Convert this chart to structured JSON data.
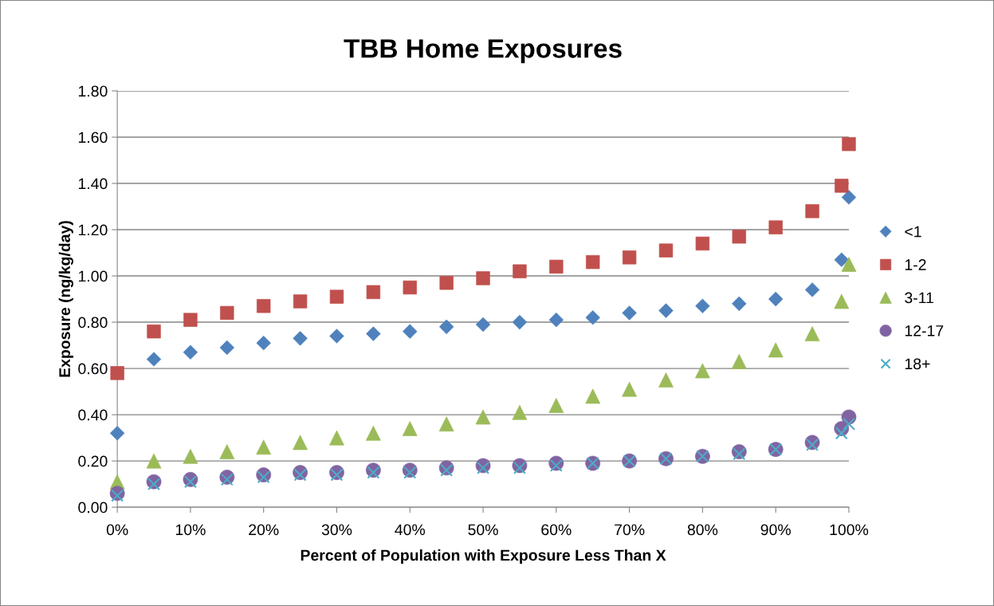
{
  "chart_data": {
    "type": "scatter",
    "title": "TBB Home Exposures",
    "xlabel": "Percent of Population with Exposure Less Than X",
    "ylabel": "Exposure (ng/kg/day)",
    "x": [
      0,
      5,
      10,
      15,
      20,
      25,
      30,
      35,
      40,
      45,
      50,
      55,
      60,
      65,
      70,
      75,
      80,
      85,
      90,
      95,
      99,
      100
    ],
    "series": [
      {
        "name": "<1",
        "color": "#4f81bd",
        "marker": "diamond",
        "values": [
          0.32,
          0.64,
          0.67,
          0.69,
          0.71,
          0.73,
          0.74,
          0.75,
          0.76,
          0.78,
          0.79,
          0.8,
          0.81,
          0.82,
          0.84,
          0.85,
          0.87,
          0.88,
          0.9,
          0.94,
          1.07,
          1.34
        ]
      },
      {
        "name": "1-2",
        "color": "#c0504d",
        "marker": "square",
        "values": [
          0.58,
          0.76,
          0.81,
          0.84,
          0.87,
          0.89,
          0.91,
          0.93,
          0.95,
          0.97,
          0.99,
          1.02,
          1.04,
          1.06,
          1.08,
          1.11,
          1.14,
          1.17,
          1.21,
          1.28,
          1.39,
          1.57
        ]
      },
      {
        "name": "3-11",
        "color": "#9bbb59",
        "marker": "triangle",
        "values": [
          0.11,
          0.2,
          0.22,
          0.24,
          0.26,
          0.28,
          0.3,
          0.32,
          0.34,
          0.36,
          0.39,
          0.41,
          0.44,
          0.48,
          0.51,
          0.55,
          0.59,
          0.63,
          0.68,
          0.75,
          0.89,
          1.05
        ]
      },
      {
        "name": "12-17",
        "color": "#8064a2",
        "marker": "circle",
        "values": [
          0.06,
          0.11,
          0.12,
          0.13,
          0.14,
          0.15,
          0.15,
          0.16,
          0.16,
          0.17,
          0.18,
          0.18,
          0.19,
          0.19,
          0.2,
          0.21,
          0.22,
          0.24,
          0.25,
          0.28,
          0.34,
          0.39
        ]
      },
      {
        "name": "18+",
        "color": "#4bacc6",
        "marker": "cross",
        "values": [
          0.05,
          0.1,
          0.11,
          0.12,
          0.13,
          0.14,
          0.14,
          0.15,
          0.15,
          0.16,
          0.17,
          0.17,
          0.18,
          0.19,
          0.2,
          0.21,
          0.22,
          0.23,
          0.25,
          0.27,
          0.32,
          0.36
        ]
      }
    ],
    "xlim": [
      0,
      100
    ],
    "ylim": [
      0,
      1.8
    ],
    "xticks": [
      {
        "value": 0,
        "label": "0%"
      },
      {
        "value": 10,
        "label": "10%"
      },
      {
        "value": 20,
        "label": "20%"
      },
      {
        "value": 30,
        "label": "30%"
      },
      {
        "value": 40,
        "label": "40%"
      },
      {
        "value": 50,
        "label": "50%"
      },
      {
        "value": 60,
        "label": "60%"
      },
      {
        "value": 70,
        "label": "70%"
      },
      {
        "value": 80,
        "label": "80%"
      },
      {
        "value": 90,
        "label": "90%"
      },
      {
        "value": 100,
        "label": "100%"
      }
    ],
    "yticks": [
      {
        "value": 0,
        "label": "0.00"
      },
      {
        "value": 0.2,
        "label": "0.20"
      },
      {
        "value": 0.4,
        "label": "0.40"
      },
      {
        "value": 0.6,
        "label": "0.60"
      },
      {
        "value": 0.8,
        "label": "0.80"
      },
      {
        "value": 1.0,
        "label": "1.00"
      },
      {
        "value": 1.2,
        "label": "1.20"
      },
      {
        "value": 1.4,
        "label": "1.40"
      },
      {
        "value": 1.6,
        "label": "1.60"
      },
      {
        "value": 1.8,
        "label": "1.80"
      }
    ],
    "grid": "y",
    "legend": "right"
  }
}
